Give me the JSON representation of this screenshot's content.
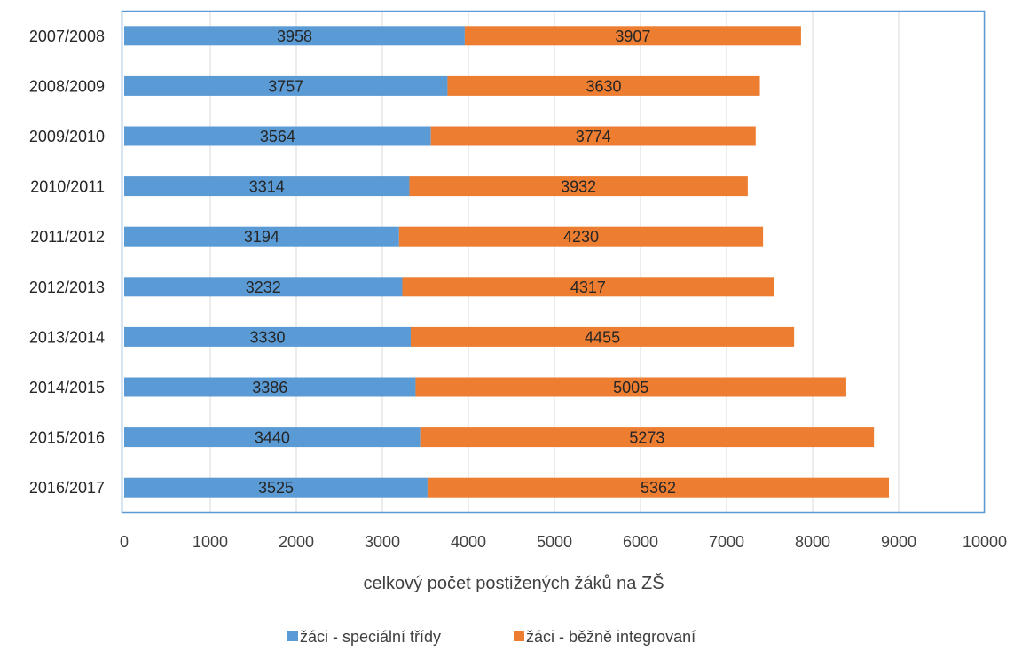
{
  "chart_data": {
    "type": "bar",
    "orientation": "horizontal",
    "stacked": true,
    "categories": [
      "2007/2008",
      "2008/2009",
      "2009/2010",
      "2010/2011",
      "2011/2012",
      "2012/2013",
      "2013/2014",
      "2014/2015",
      "2015/2016",
      "2016/2017"
    ],
    "series": [
      {
        "name": "žáci - speciální třídy",
        "color": "#5B9BD5",
        "values": [
          3958,
          3757,
          3564,
          3314,
          3194,
          3232,
          3330,
          3386,
          3440,
          3525
        ]
      },
      {
        "name": "žáci - běžně integrovaní",
        "color": "#ED7D31",
        "values": [
          3907,
          3630,
          3774,
          3932,
          4230,
          4317,
          4455,
          5005,
          5273,
          5362
        ]
      }
    ],
    "xlabel": "celkový počet postižených žáků na ZŠ",
    "xlim": [
      0,
      10000
    ],
    "xticks": [
      "0",
      "1000",
      "2000",
      "3000",
      "4000",
      "5000",
      "6000",
      "7000",
      "8000",
      "9000",
      "10000"
    ],
    "grid": true,
    "legend_position": "bottom"
  }
}
